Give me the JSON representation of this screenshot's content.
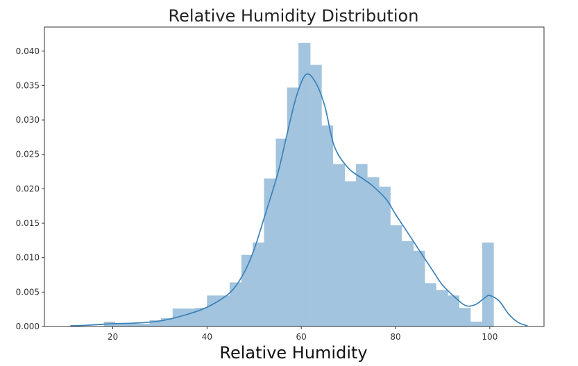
{
  "chart_data": {
    "type": "bar",
    "title": "Relative Humidity Distribution",
    "xlabel": "Relative Humidity",
    "ylabel": "",
    "xlim": [
      5.5,
      111.5
    ],
    "ylim": [
      0,
      0.0435
    ],
    "grid": false,
    "colors": {
      "bars": "#a3c4de",
      "kde": "#3a82ba",
      "axes": "#333333"
    },
    "x_ticks": [
      {
        "value": 20,
        "label": "20"
      },
      {
        "value": 40,
        "label": "40"
      },
      {
        "value": 60,
        "label": "60"
      },
      {
        "value": 80,
        "label": "80"
      },
      {
        "value": 100,
        "label": "100"
      }
    ],
    "y_ticks": [
      {
        "value": 0.0,
        "label": "0.000"
      },
      {
        "value": 0.005,
        "label": "0.005"
      },
      {
        "value": 0.01,
        "label": "0.010"
      },
      {
        "value": 0.015,
        "label": "0.015"
      },
      {
        "value": 0.02,
        "label": "0.020"
      },
      {
        "value": 0.025,
        "label": "0.025"
      },
      {
        "value": 0.03,
        "label": "0.030"
      },
      {
        "value": 0.035,
        "label": "0.035"
      },
      {
        "value": 0.04,
        "label": "0.040"
      }
    ],
    "histogram": {
      "bin_edges": [
        18.1,
        20.5,
        22.9,
        25.4,
        27.8,
        30.2,
        32.7,
        35.1,
        37.5,
        40.0,
        42.4,
        44.8,
        47.3,
        49.7,
        52.1,
        54.6,
        57.0,
        59.4,
        61.9,
        64.3,
        66.7,
        69.2,
        71.6,
        74.0,
        76.5,
        78.9,
        81.3,
        83.8,
        86.2,
        88.6,
        91.1,
        93.5,
        95.9,
        98.4,
        100.8
      ],
      "density": [
        0.0007,
        0.0004,
        0.0004,
        0.0004,
        0.0009,
        0.0012,
        0.0026,
        0.0026,
        0.0027,
        0.0045,
        0.0045,
        0.0064,
        0.0104,
        0.0122,
        0.0215,
        0.0273,
        0.0347,
        0.0412,
        0.038,
        0.0292,
        0.0236,
        0.0211,
        0.0236,
        0.0217,
        0.0203,
        0.0147,
        0.0124,
        0.011,
        0.0063,
        0.0053,
        0.0045,
        0.0027,
        0.0007,
        0.0122
      ]
    },
    "kde": {
      "x": [
        11,
        15,
        20,
        25,
        30,
        35,
        40,
        45,
        48,
        50,
        52,
        55,
        57,
        59,
        61,
        63,
        65,
        67,
        70,
        73,
        75,
        78,
        80,
        83,
        85,
        88,
        90,
        93,
        95,
        97,
        99,
        100,
        102,
        104,
        106,
        108
      ],
      "y": [
        0.0001,
        0.0002,
        0.0004,
        0.0005,
        0.0008,
        0.0016,
        0.0028,
        0.005,
        0.008,
        0.0112,
        0.0155,
        0.0222,
        0.028,
        0.0335,
        0.0366,
        0.0355,
        0.032,
        0.0262,
        0.023,
        0.0215,
        0.0205,
        0.0185,
        0.0163,
        0.0132,
        0.0111,
        0.008,
        0.006,
        0.004,
        0.003,
        0.0032,
        0.0042,
        0.0045,
        0.0037,
        0.0018,
        0.0006,
        0.0001
      ]
    }
  }
}
